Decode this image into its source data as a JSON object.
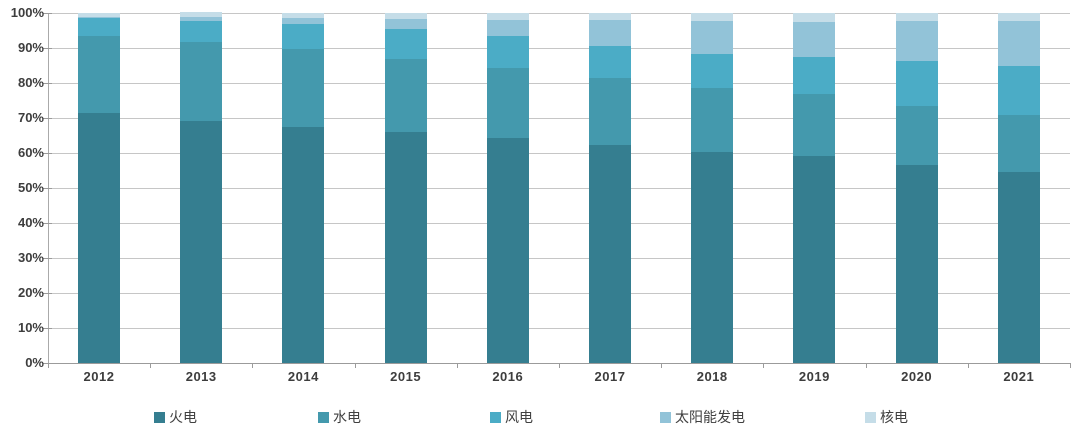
{
  "chart": {
    "background": "#ffffff",
    "grid_color": "#c6c6c6",
    "axis_color": "#9b9b9b",
    "label_color": "#3d3d3d"
  },
  "chart_data": {
    "type": "bar",
    "stacked": true,
    "percent_stacked": true,
    "title": "",
    "xlabel": "",
    "ylabel": "",
    "ylim": [
      0,
      100
    ],
    "grid": true,
    "legend_position": "bottom",
    "y_tick_labels": [
      "0%",
      "10%",
      "20%",
      "30%",
      "40%",
      "50%",
      "60%",
      "70%",
      "80%",
      "90%",
      "100%"
    ],
    "categories": [
      "2012",
      "2013",
      "2014",
      "2015",
      "2016",
      "2017",
      "2018",
      "2019",
      "2020",
      "2021"
    ],
    "series": [
      {
        "name": "火电",
        "color": "#357E90",
        "values": [
          71.5,
          69.2,
          67.4,
          65.9,
          64.3,
          62.2,
          60.2,
          59.2,
          56.6,
          54.6
        ]
      },
      {
        "name": "水电",
        "color": "#4499AD",
        "values": [
          21.8,
          22.4,
          22.3,
          20.9,
          20.1,
          19.2,
          18.5,
          17.7,
          16.8,
          16.4
        ]
      },
      {
        "name": "风电",
        "color": "#4BACC6",
        "values": [
          5.3,
          6.1,
          7.1,
          8.6,
          8.9,
          9.2,
          9.7,
          10.4,
          12.8,
          13.8
        ]
      },
      {
        "name": "太阳能发电",
        "color": "#92C3D8",
        "values": [
          0.3,
          1.3,
          1.8,
          2.8,
          4.7,
          7.3,
          9.2,
          10.2,
          11.5,
          12.9
        ]
      },
      {
        "name": "核电",
        "color": "#C5DDE8",
        "values": [
          1.1,
          1.2,
          1.5,
          1.8,
          2.0,
          2.0,
          2.4,
          2.4,
          2.3,
          2.2
        ]
      }
    ]
  }
}
